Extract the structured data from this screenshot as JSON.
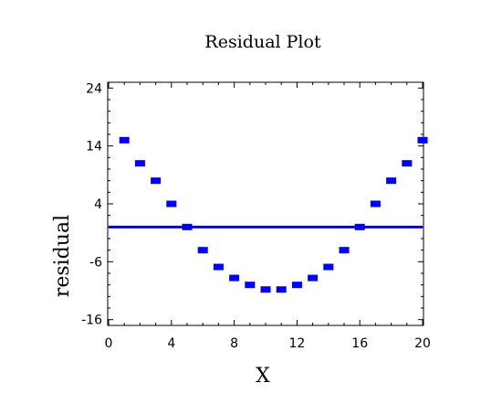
{
  "chart_data": {
    "type": "scatter",
    "title": "Residual Plot",
    "xlabel": "X",
    "ylabel": "residual",
    "xlim": [
      0,
      20
    ],
    "ylim": [
      -17,
      25
    ],
    "xticks": [
      0,
      4,
      8,
      12,
      16,
      20
    ],
    "yticks": [
      -16,
      -6,
      4,
      14,
      24
    ],
    "grid": false,
    "series": [
      {
        "x": [
          1,
          2,
          3,
          4,
          5,
          6,
          7,
          8,
          9,
          10,
          11,
          12,
          13,
          14,
          15,
          16,
          17,
          18,
          19,
          20
        ],
        "y": [
          15,
          11,
          8,
          4,
          0,
          -4,
          -6.9,
          -8.8,
          -10,
          -10.8,
          -10.8,
          -10,
          -8.8,
          -6.9,
          -4,
          0,
          4,
          8,
          11,
          15
        ]
      }
    ],
    "reference_line": {
      "y": 0
    },
    "colors": {
      "points": "#0000ff",
      "reference_line": "#0000ff",
      "axes": "#000000"
    }
  }
}
